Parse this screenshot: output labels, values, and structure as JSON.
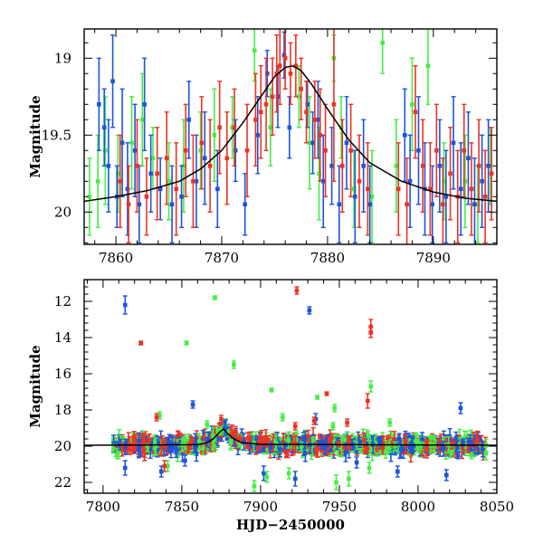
{
  "colors": {
    "green": "#44ee44",
    "blue": "#1a55dd",
    "red": "#ee3322",
    "model": "#000000"
  },
  "chart_data": [
    {
      "type": "scatter",
      "panel": "top",
      "ylabel": "Magnitude",
      "xlabel": "",
      "xlim": [
        7857,
        7896
      ],
      "ylim": [
        20.21,
        18.81
      ],
      "y_inverted": true,
      "xticks": [
        7860,
        7870,
        7880,
        7890
      ],
      "yticks": [
        19,
        19.5,
        20
      ],
      "ytick_labels": [
        "19",
        "19.5",
        "20"
      ],
      "model_curve": {
        "description": "single-lens microlensing fit",
        "x": [
          7857,
          7860,
          7863,
          7866,
          7868,
          7870,
          7872,
          7874,
          7875,
          7876,
          7876.7,
          7877.5,
          7878.5,
          7880,
          7882,
          7884,
          7887,
          7890,
          7893,
          7896
        ],
        "y": [
          19.93,
          19.9,
          19.86,
          19.8,
          19.72,
          19.6,
          19.42,
          19.22,
          19.12,
          19.06,
          19.05,
          19.08,
          19.17,
          19.33,
          19.53,
          19.68,
          19.8,
          19.87,
          19.91,
          19.93
        ]
      },
      "series": [
        {
          "color": "green",
          "points": [
            [
              7857.5,
              19.9,
              0.25
            ],
            [
              7858.3,
              19.8,
              0.3
            ],
            [
              7859,
              19.6,
              0.35
            ],
            [
              7860.2,
              19.75,
              0.25
            ],
            [
              7861.5,
              19.55,
              0.3
            ],
            [
              7862.5,
              19.4,
              0.3
            ],
            [
              7863.5,
              19.65,
              0.2
            ],
            [
              7865,
              19.8,
              0.25
            ],
            [
              7866.4,
              19.7,
              0.3
            ],
            [
              7868,
              19.6,
              0.25
            ],
            [
              7869.3,
              19.5,
              0.3
            ],
            [
              7871,
              19.45,
              0.2
            ],
            [
              7873.1,
              18.95,
              0.2
            ],
            [
              7874.6,
              19.45,
              0.25
            ],
            [
              7877.3,
              19.25,
              0.2
            ],
            [
              7878.3,
              19.55,
              0.3
            ],
            [
              7879.2,
              19.75,
              0.3
            ],
            [
              7880.6,
              19.0,
              0.15
            ],
            [
              7881.3,
              19.45,
              0.2
            ],
            [
              7882.5,
              19.85,
              0.25
            ],
            [
              7884.2,
              19.9,
              0.3
            ],
            [
              7885.2,
              18.9,
              0.2
            ],
            [
              7886.5,
              19.7,
              0.3
            ],
            [
              7888,
              19.3,
              0.3
            ],
            [
              7889.5,
              19.05,
              0.25
            ],
            [
              7891,
              19.8,
              0.25
            ],
            [
              7893,
              19.8,
              0.3
            ],
            [
              7894.2,
              19.95,
              0.25
            ],
            [
              7895.4,
              19.7,
              0.25
            ]
          ]
        },
        {
          "color": "blue",
          "points": [
            [
              7858.4,
              19.3,
              0.3
            ],
            [
              7858.9,
              19.45,
              0.25
            ],
            [
              7859.3,
              19.7,
              0.3
            ],
            [
              7859.7,
              19.15,
              0.3
            ],
            [
              7860.1,
              19.9,
              0.2
            ],
            [
              7860.6,
              19.55,
              0.35
            ],
            [
              7861.1,
              19.85,
              0.3
            ],
            [
              7861.8,
              19.6,
              0.3
            ],
            [
              7862.2,
              19.95,
              0.25
            ],
            [
              7862.7,
              19.3,
              0.3
            ],
            [
              7863.3,
              19.75,
              0.25
            ],
            [
              7864.2,
              19.85,
              0.2
            ],
            [
              7865.3,
              19.95,
              0.25
            ],
            [
              7866.2,
              19.9,
              0.2
            ],
            [
              7866.9,
              19.4,
              0.25
            ],
            [
              7867.6,
              19.8,
              0.3
            ],
            [
              7868.4,
              19.65,
              0.3
            ],
            [
              7869.6,
              19.85,
              0.25
            ],
            [
              7871.3,
              19.6,
              0.2
            ],
            [
              7872.2,
              19.95,
              0.2
            ],
            [
              7873.4,
              19.5,
              0.25
            ],
            [
              7874.3,
              19.1,
              0.15
            ],
            [
              7875.3,
              19.25,
              0.2
            ],
            [
              7875.9,
              18.98,
              0.15
            ],
            [
              7876.4,
              19.45,
              0.2
            ],
            [
              7878.1,
              19.3,
              0.15
            ],
            [
              7878.6,
              19.55,
              0.2
            ],
            [
              7879.1,
              19.4,
              0.25
            ],
            [
              7879.6,
              19.8,
              0.3
            ],
            [
              7880.4,
              19.7,
              0.25
            ],
            [
              7881.1,
              19.95,
              0.25
            ],
            [
              7881.8,
              19.55,
              0.3
            ],
            [
              7882.6,
              19.9,
              0.3
            ],
            [
              7883.4,
              19.7,
              0.3
            ],
            [
              7884,
              19.95,
              0.25
            ],
            [
              7887.3,
              19.5,
              0.3
            ],
            [
              7887.8,
              19.8,
              0.3
            ],
            [
              7888.6,
              19.6,
              0.35
            ],
            [
              7889.2,
              19.85,
              0.3
            ],
            [
              7889.9,
              19.95,
              0.25
            ],
            [
              7890.6,
              19.7,
              0.3
            ],
            [
              7891.2,
              19.9,
              0.3
            ],
            [
              7891.9,
              19.55,
              0.3
            ],
            [
              7892.6,
              19.85,
              0.3
            ],
            [
              7893.3,
              19.65,
              0.3
            ],
            [
              7893.9,
              19.95,
              0.3
            ],
            [
              7894.6,
              19.8,
              0.3
            ],
            [
              7895.2,
              19.7,
              0.3
            ]
          ]
        },
        {
          "color": "red",
          "points": [
            [
              7860.4,
              19.8,
              0.3
            ],
            [
              7861.2,
              19.95,
              0.25
            ],
            [
              7862,
              19.7,
              0.3
            ],
            [
              7862.9,
              19.9,
              0.25
            ],
            [
              7863.9,
              19.75,
              0.3
            ],
            [
              7864.8,
              19.65,
              0.3
            ],
            [
              7865.7,
              19.85,
              0.3
            ],
            [
              7866.6,
              19.6,
              0.3
            ],
            [
              7867.3,
              19.8,
              0.3
            ],
            [
              7868.1,
              19.55,
              0.3
            ],
            [
              7868.9,
              19.7,
              0.3
            ],
            [
              7869.8,
              19.45,
              0.3
            ],
            [
              7870.5,
              19.65,
              0.3
            ],
            [
              7871.2,
              19.45,
              0.25
            ],
            [
              7872.4,
              19.6,
              0.3
            ],
            [
              7873.2,
              19.4,
              0.3
            ],
            [
              7873.7,
              19.35,
              0.3
            ],
            [
              7874.2,
              19.3,
              0.3
            ],
            [
              7874.8,
              19.25,
              0.25
            ],
            [
              7875.2,
              19.1,
              0.25
            ],
            [
              7875.5,
              19.05,
              0.25
            ],
            [
              7876,
              19.0,
              0.2
            ],
            [
              7876.5,
              19.1,
              0.2
            ],
            [
              7877,
              19.05,
              0.2
            ],
            [
              7877.5,
              19.2,
              0.2
            ],
            [
              7878,
              19.35,
              0.2
            ],
            [
              7878.8,
              19.4,
              0.25
            ],
            [
              7879.3,
              19.5,
              0.3
            ],
            [
              7879.8,
              19.6,
              0.3
            ],
            [
              7880.6,
              19.3,
              0.5
            ],
            [
              7881.4,
              19.7,
              0.3
            ],
            [
              7882.2,
              19.6,
              0.3
            ],
            [
              7883,
              19.8,
              0.3
            ],
            [
              7883.8,
              19.85,
              0.3
            ],
            [
              7886.7,
              19.85,
              0.3
            ],
            [
              7887.5,
              19.95,
              0.3
            ],
            [
              7888.3,
              19.35,
              0.3
            ],
            [
              7889,
              19.7,
              0.3
            ],
            [
              7889.7,
              19.85,
              0.3
            ],
            [
              7890.3,
              19.6,
              0.3
            ],
            [
              7890.9,
              19.95,
              0.3
            ],
            [
              7891.6,
              19.75,
              0.3
            ],
            [
              7892.3,
              19.9,
              0.3
            ],
            [
              7892.9,
              19.6,
              0.3
            ],
            [
              7893.6,
              19.85,
              0.3
            ],
            [
              7894.3,
              19.7,
              0.3
            ],
            [
              7894.9,
              19.9,
              0.3
            ],
            [
              7895.5,
              19.75,
              0.3
            ]
          ]
        }
      ]
    },
    {
      "type": "scatter",
      "panel": "bottom",
      "ylabel": "Magnitude",
      "xlabel": "HJD−2450000",
      "xlim": [
        7788,
        8050
      ],
      "ylim": [
        22.6,
        10.8
      ],
      "y_inverted": true,
      "xticks": [
        7800,
        7850,
        7900,
        7950,
        8000,
        8050
      ],
      "yticks": [
        12,
        14,
        16,
        18,
        20,
        22
      ],
      "ytick_labels": [
        "12",
        "14",
        "16",
        "18",
        "20",
        "22"
      ],
      "model_curve": {
        "x": [
          7788,
          7860,
          7866,
          7870,
          7874,
          7876.7,
          7879,
          7883,
          7888,
          7900,
          8050
        ],
        "y": [
          19.95,
          19.92,
          19.8,
          19.6,
          19.22,
          19.05,
          19.3,
          19.6,
          19.8,
          19.9,
          19.95
        ]
      },
      "baseline": {
        "x_start": 7806,
        "x_end": 8044,
        "mag": 20.0,
        "scatter": 0.35
      },
      "series": [
        {
          "color": "blue",
          "outliers": [
            [
              7814,
              12.2,
              0.5
            ],
            [
              7931,
              12.5,
              0.2
            ],
            [
              7857,
              17.7,
              0.2
            ],
            [
              7935,
              18.5,
              0.3
            ],
            [
              8027,
              17.9,
              0.3
            ],
            [
              7814,
              21.2,
              0.4
            ],
            [
              7837,
              21.4,
              0.3
            ],
            [
              7902,
              21.5,
              0.4
            ],
            [
              7922,
              21.8,
              0.4
            ],
            [
              7987,
              21.4,
              0.3
            ],
            [
              8018,
              21.6,
              0.3
            ],
            [
              7852,
              20.8,
              0.3
            ],
            [
              7961,
              20.9,
              0.3
            ]
          ]
        },
        {
          "color": "green",
          "outliers": [
            [
              7871,
              11.8,
              0.1
            ],
            [
              7853,
              14.3,
              0.1
            ],
            [
              7883,
              15.5,
              0.2
            ],
            [
              7970,
              16.7,
              0.3
            ],
            [
              7907,
              16.9,
              0.1
            ],
            [
              7936,
              17.3,
              0.1
            ],
            [
              7947,
              17.9,
              0.2
            ],
            [
              7914,
              18.4,
              0.2
            ],
            [
              7946,
              18.9,
              0.2
            ],
            [
              7866,
              18.8,
              0.2
            ],
            [
              7836,
              18.3,
              0.2
            ],
            [
              7982,
              18.7,
              0.2
            ],
            [
              7841,
              21.1,
              0.3
            ],
            [
              7948,
              22.0,
              0.4
            ],
            [
              7956,
              21.8,
              0.4
            ],
            [
              7904,
              21.7,
              0.3
            ],
            [
              7918,
              21.5,
              0.3
            ],
            [
              7969,
              21.2,
              0.3
            ],
            [
              7896,
              22.2,
              0.3
            ]
          ]
        },
        {
          "color": "red",
          "outliers": [
            [
              7923,
              11.4,
              0.2
            ],
            [
              7824,
              14.3,
              0.1
            ],
            [
              7970,
              13.4,
              0.4
            ],
            [
              7970,
              13.7,
              0.3
            ],
            [
              7942,
              17.1,
              0.1
            ],
            [
              7968,
              17.5,
              0.4
            ],
            [
              7834,
              18.4,
              0.2
            ],
            [
              7934,
              18.6,
              0.2
            ],
            [
              7922,
              18.9,
              0.2
            ],
            [
              7955,
              18.7,
              0.2
            ],
            [
              7875,
              18.5,
              0.2
            ],
            [
              7839,
              21.1,
              0.3
            ]
          ]
        }
      ]
    }
  ]
}
